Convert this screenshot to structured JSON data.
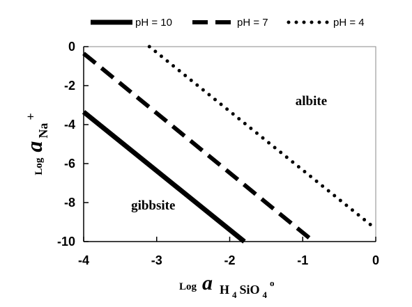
{
  "chart_data": {
    "type": "line",
    "xlim": [
      -4,
      0
    ],
    "ylim": [
      -10,
      0
    ],
    "x_ticks": [
      -4,
      -3,
      -2,
      -1,
      0
    ],
    "y_ticks": [
      0,
      -2,
      -4,
      -6,
      -8,
      -10
    ],
    "x_tick_labels": [
      "-4",
      "-3",
      "-2",
      "-1",
      "0"
    ],
    "y_tick_labels": [
      "0",
      "-2",
      "-4",
      "-6",
      "-8",
      "-10"
    ],
    "xlabel": {
      "prefix": "Log",
      "a": "a",
      "subscript": "H",
      "sub1": "4",
      "subscript2": "SiO",
      "sub2": "4",
      "sup": "o"
    },
    "ylabel": {
      "prefix": "Log",
      "a": "a",
      "subscript": "Na",
      "sup": "+"
    },
    "grid": false,
    "legend_position": "top",
    "series": [
      {
        "name": "pH = 10",
        "style": "solid",
        "x": [
          -4.0,
          -1.8
        ],
        "y": [
          -3.35,
          -10.0
        ]
      },
      {
        "name": "pH = 7",
        "style": "dashed",
        "x": [
          -4.0,
          -0.85
        ],
        "y": [
          -0.35,
          -10.0
        ]
      },
      {
        "name": "pH = 4",
        "style": "dotted",
        "x": [
          -3.1,
          0.0
        ],
        "y": [
          0.0,
          -9.35
        ]
      }
    ],
    "annotations": [
      {
        "text": "albite",
        "x": -1.1,
        "y": -3.0
      },
      {
        "text": "gibbsite",
        "x": -3.35,
        "y": -8.35
      }
    ]
  }
}
